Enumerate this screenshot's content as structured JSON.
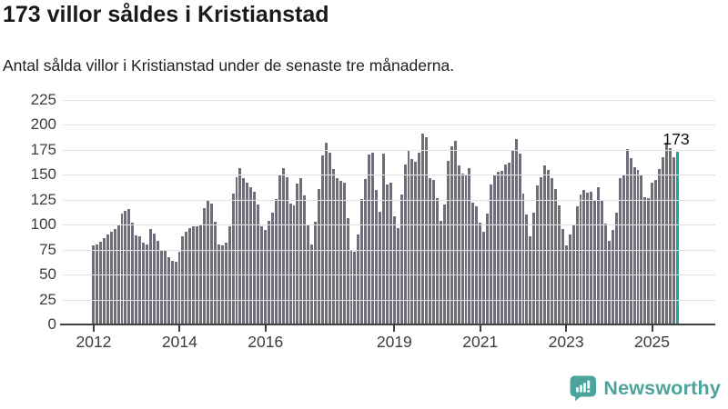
{
  "header": {
    "title": "173 villor såldes i Kristianstad",
    "subtitle": "Antal sålda villor i Kristianstad under de senaste tre månaderna."
  },
  "chart_data": {
    "type": "bar",
    "title": "173 villor såldes i Kristianstad",
    "subtitle": "Antal sålda villor i Kristianstad under de senaste tre månaderna.",
    "xlabel": "",
    "ylabel": "",
    "ylim": [
      0,
      225
    ],
    "grid": true,
    "y_ticks": [
      0,
      25,
      50,
      75,
      100,
      125,
      150,
      175,
      200,
      225
    ],
    "x_ticks": [
      {
        "label": "2012",
        "month_index": 0
      },
      {
        "label": "2014",
        "month_index": 24
      },
      {
        "label": "2016",
        "month_index": 48
      },
      {
        "label": "2019",
        "month_index": 84
      },
      {
        "label": "2021",
        "month_index": 108
      },
      {
        "label": "2023",
        "month_index": 132
      },
      {
        "label": "2025",
        "month_index": 156
      }
    ],
    "series": [
      {
        "name": "Antal sålda villor, rullande tre månader",
        "start_month": "2012-01",
        "end_month": "2025-08",
        "values": [
          79,
          80,
          83,
          87,
          90,
          93,
          96,
          100,
          111,
          114,
          116,
          102,
          89,
          88,
          82,
          80,
          96,
          91,
          84,
          74,
          75,
          67,
          64,
          63,
          73,
          88,
          93,
          97,
          98,
          98,
          99,
          117,
          125,
          121,
          103,
          80,
          79,
          82,
          98,
          131,
          148,
          157,
          147,
          142,
          138,
          133,
          120,
          98,
          95,
          104,
          112,
          126,
          150,
          157,
          148,
          121,
          119,
          141,
          147,
          129,
          99,
          80,
          103,
          136,
          169,
          182,
          172,
          156,
          147,
          144,
          142,
          107,
          75,
          73,
          90,
          126,
          146,
          170,
          172,
          135,
          113,
          171,
          140,
          142,
          108,
          97,
          130,
          160,
          174,
          166,
          163,
          172,
          191,
          188,
          147,
          145,
          127,
          104,
          120,
          164,
          179,
          184,
          159,
          151,
          150,
          157,
          122,
          118,
          102,
          93,
          111,
          140,
          149,
          153,
          154,
          160,
          162,
          174,
          186,
          171,
          131,
          110,
          88,
          112,
          139,
          148,
          159,
          155,
          147,
          136,
          119,
          96,
          79,
          90,
          99,
          118,
          130,
          135,
          132,
          133,
          125,
          138,
          124,
          101,
          84,
          95,
          112,
          147,
          149,
          176,
          167,
          158,
          155,
          150,
          128,
          127,
          142,
          145,
          156,
          168,
          182,
          177,
          168,
          173
        ]
      }
    ],
    "highlight": {
      "index": 163,
      "value": 173,
      "label": "173",
      "color": "#1ca49d"
    },
    "bar_color": "#6e6e78",
    "gridline_color": "#e2e2e2",
    "axis_color": "#404040"
  },
  "branding": {
    "logo_text": "Newsworthy",
    "logo_color": "#4ba49b",
    "icon": "speech-bubble-bar-chart-exclamation"
  }
}
